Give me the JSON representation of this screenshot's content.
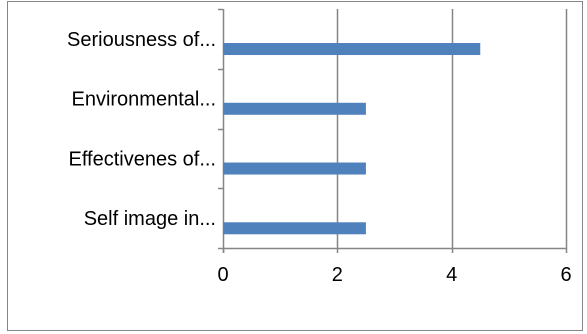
{
  "chart_data": {
    "type": "bar",
    "orientation": "horizontal",
    "categories": [
      "Seriousness of...",
      "Environmental...",
      "Effectivenes of...",
      "Self image in..."
    ],
    "values": [
      4.5,
      2.5,
      2.5,
      2.5
    ],
    "title": "",
    "xlabel": "",
    "ylabel": "",
    "xlim": [
      0,
      6
    ],
    "x_ticks": [
      "0",
      "2",
      "4",
      "6"
    ],
    "grid": "vertical",
    "legend": "none",
    "colors": {
      "bar": "#4f81bd",
      "grid": "#868686",
      "axis": "#868686"
    }
  }
}
